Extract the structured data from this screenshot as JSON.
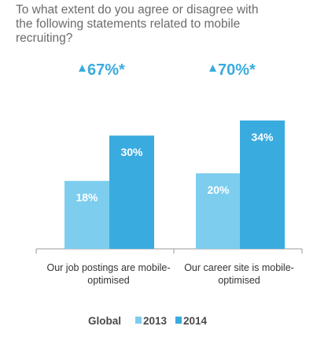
{
  "chart_data": {
    "type": "bar",
    "title": "To what extent do you agree or disagree with the following statements related to mobile recruiting?",
    "categories": [
      "Our job postings are mobile-optimised",
      "Our career site is mobile-optimised"
    ],
    "category_lines": [
      [
        "Our job postings are mobile-",
        "optimised"
      ],
      [
        "Our career site is mobile-",
        "optimised"
      ]
    ],
    "series": [
      {
        "name": "2013",
        "values": [
          18,
          20
        ],
        "labels": [
          "18%",
          "20%"
        ],
        "color": "#7ccdee"
      },
      {
        "name": "2014",
        "values": [
          30,
          34
        ],
        "labels": [
          "30%",
          "34%"
        ],
        "color": "#3aabdf"
      }
    ],
    "annotations": [
      "67%*",
      "70%*"
    ],
    "annotation_color": "#3aabdf",
    "annotation_marker": "triangle-up-icon",
    "ylim": [
      0,
      40
    ],
    "xlabel": "",
    "ylabel": "",
    "grid": false,
    "legend": {
      "title": "Global",
      "position": "bottom",
      "entries": [
        "2013",
        "2014"
      ]
    }
  }
}
